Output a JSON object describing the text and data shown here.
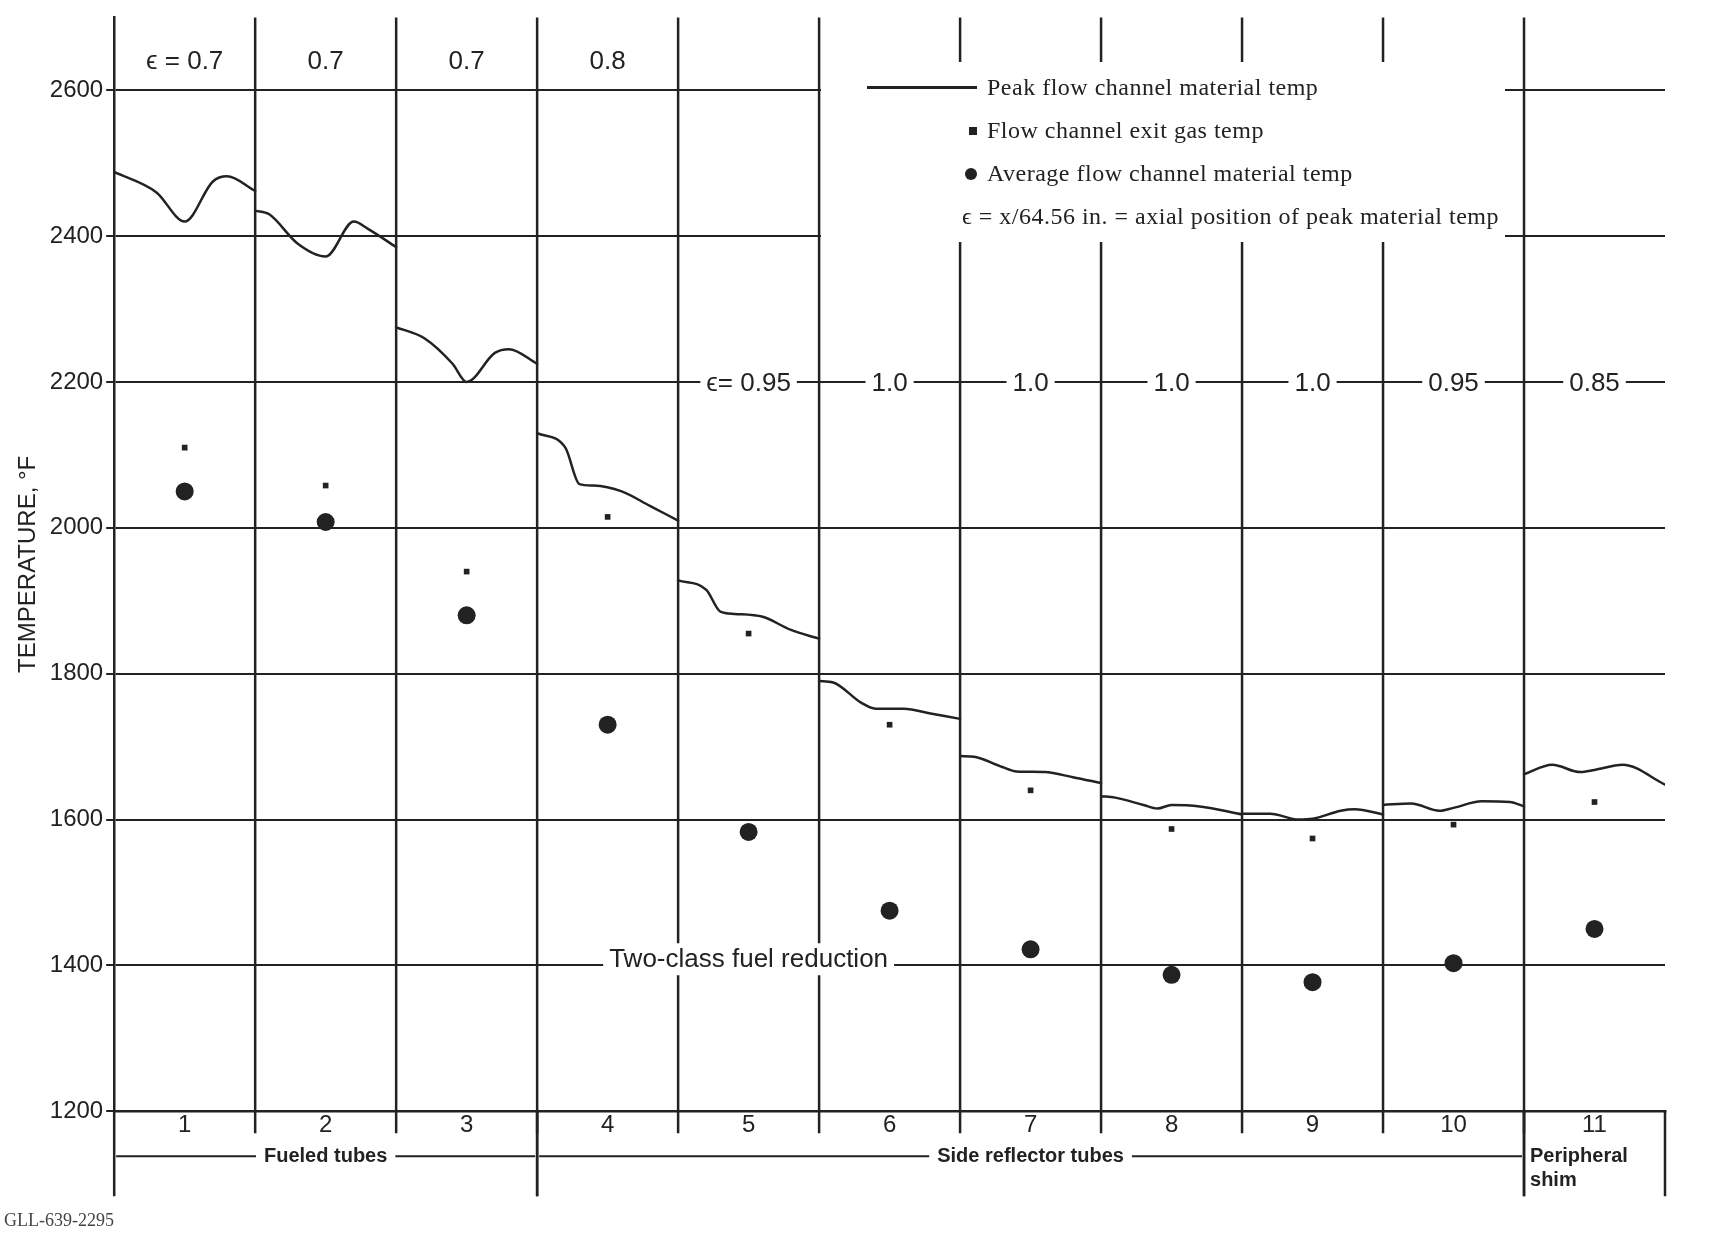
{
  "chart_data": {
    "type": "line",
    "xlim": [
      0.5,
      11.5
    ],
    "xticks": [
      1,
      2,
      3,
      4,
      5,
      6,
      7,
      8,
      9,
      10,
      11
    ],
    "ylim": [
      1200,
      2700
    ],
    "yticks": [
      1200,
      1400,
      1600,
      1800,
      2000,
      2200,
      2400,
      2600
    ],
    "ylabel": "TEMPERATURE, °F",
    "grid": "y",
    "legend": "top right",
    "series": [
      {
        "name": "Peak flow channel material temp",
        "color": "#222222",
        "marker": "none",
        "line_style": "solid",
        "x": [
          0.5,
          0.8,
          1.0,
          1.2,
          1.3,
          1.5
        ],
        "values": [
          2488,
          2460,
          2420,
          2475,
          2482,
          2462
        ]
      },
      {
        "color": "#222222",
        "marker": "none",
        "line_style": "solid",
        "x": [
          1.5,
          1.6,
          1.8,
          2.0,
          2.2,
          2.3,
          2.5
        ],
        "values": [
          2435,
          2430,
          2390,
          2372,
          2420,
          2410,
          2385
        ]
      },
      {
        "color": "#222222",
        "marker": "none",
        "line_style": "solid",
        "x": [
          2.5,
          2.7,
          2.9,
          3.0,
          3.2,
          3.3,
          3.5
        ],
        "values": [
          2275,
          2260,
          2225,
          2200,
          2240,
          2245,
          2225
        ]
      },
      {
        "color": "#222222",
        "marker": "none",
        "line_style": "solid",
        "x": [
          3.5,
          3.7,
          3.8,
          3.9,
          4.1,
          4.3,
          4.5
        ],
        "values": [
          2130,
          2110,
          2060,
          2058,
          2050,
          2030,
          2010
        ]
      },
      {
        "color": "#222222",
        "marker": "none",
        "line_style": "solid",
        "x": [
          4.5,
          4.7,
          4.8,
          4.9,
          5.1,
          5.3,
          5.5
        ],
        "values": [
          1928,
          1915,
          1885,
          1882,
          1878,
          1860,
          1848
        ]
      },
      {
        "color": "#222222",
        "marker": "none",
        "line_style": "solid",
        "x": [
          5.5,
          5.6,
          5.8,
          5.9,
          6.1,
          6.3,
          6.5
        ],
        "values": [
          1790,
          1788,
          1760,
          1752,
          1752,
          1745,
          1738
        ]
      },
      {
        "color": "#222222",
        "marker": "none",
        "line_style": "solid",
        "x": [
          6.5,
          6.6,
          6.8,
          6.9,
          7.1,
          7.3,
          7.5
        ],
        "values": [
          1687,
          1686,
          1672,
          1666,
          1665,
          1658,
          1650
        ]
      },
      {
        "color": "#222222",
        "marker": "none",
        "line_style": "solid",
        "x": [
          7.5,
          7.6,
          7.8,
          7.9,
          8.0,
          8.2,
          8.5
        ],
        "values": [
          1632,
          1630,
          1620,
          1615,
          1620,
          1618,
          1607
        ]
      },
      {
        "color": "#222222",
        "marker": "none",
        "line_style": "solid",
        "x": [
          8.5,
          8.7,
          8.9,
          9.0,
          9.2,
          9.3,
          9.5
        ],
        "values": [
          1608,
          1608,
          1600,
          1601,
          1612,
          1614,
          1607
        ]
      },
      {
        "color": "#222222",
        "marker": "none",
        "line_style": "solid",
        "x": [
          9.5,
          9.7,
          9.9,
          10.0,
          10.2,
          10.4,
          10.5
        ],
        "values": [
          1620,
          1622,
          1612,
          1616,
          1625,
          1624,
          1618
        ]
      },
      {
        "color": "#222222",
        "marker": "none",
        "line_style": "solid",
        "x": [
          10.5,
          10.7,
          10.9,
          11.0,
          11.2,
          11.5
        ],
        "values": [
          1662,
          1675,
          1665,
          1668,
          1675,
          1648
        ]
      },
      {
        "name": "Flow channel exit gas temp",
        "type": "scatter",
        "color": "#222222",
        "marker": "square",
        "x": [
          1,
          2,
          3,
          4,
          5,
          6,
          7,
          8,
          9,
          10,
          11
        ],
        "values": [
          2110,
          2058,
          1940,
          2015,
          1855,
          1730,
          1640,
          1587,
          1574,
          1593,
          1624
        ]
      },
      {
        "name": "Average flow channel material temp",
        "type": "scatter",
        "color": "#222222",
        "marker": "circle",
        "x": [
          1,
          2,
          3,
          4,
          5,
          6,
          7,
          8,
          9,
          10,
          11
        ],
        "values": [
          2050,
          2008,
          1880,
          1730,
          1583,
          1475,
          1422,
          1387,
          1377,
          1403,
          1450
        ]
      }
    ],
    "ref_lines": [
      {
        "axis": "x",
        "value": 1.5
      },
      {
        "axis": "x",
        "value": 2.5
      },
      {
        "axis": "x",
        "value": 3.5
      },
      {
        "axis": "x",
        "value": 4.5
      },
      {
        "axis": "x",
        "value": 5.5
      },
      {
        "axis": "x",
        "value": 6.5
      },
      {
        "axis": "x",
        "value": 7.5
      },
      {
        "axis": "x",
        "value": 8.5
      },
      {
        "axis": "x",
        "value": 9.5
      },
      {
        "axis": "x",
        "value": 10.5
      }
    ],
    "annotations": [
      "ϵ = 0.7",
      "0.7",
      "0.7",
      "0.8",
      "ϵ= 0.95",
      "1.0",
      "1.0",
      "1.0",
      "1.0",
      "0.95",
      "0.85",
      "Two-class fuel reduction",
      "ϵ = x/64.56 in. = axial position of peak material temp",
      "Fueled tubes",
      "Side reflector tubes",
      "Peripheral shim",
      "GLL-639-2295"
    ]
  }
}
